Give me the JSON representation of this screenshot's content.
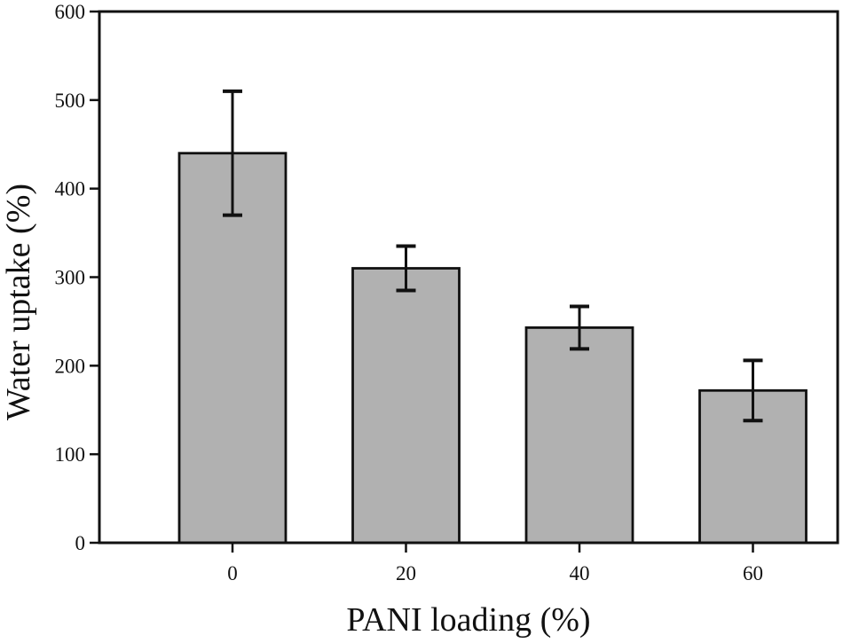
{
  "figure": {
    "background_color": "#ffffff"
  },
  "chart_data": {
    "type": "bar",
    "title": "",
    "xlabel": "PANI loading (%)",
    "ylabel": "Water uptake (%)",
    "categories": [
      "0",
      "20",
      "40",
      "60"
    ],
    "values": [
      440,
      310,
      243,
      172
    ],
    "error_bars": [
      70,
      25,
      24,
      34
    ],
    "ylim": [
      0,
      600
    ],
    "yticks": [
      0,
      100,
      200,
      300,
      400,
      500,
      600
    ],
    "grid": false,
    "legend": "none",
    "bar_fill_color": "#b1b1b1",
    "bar_edge_color": "#111111",
    "axis_color": "#111111",
    "error_bar_color": "#111111"
  }
}
